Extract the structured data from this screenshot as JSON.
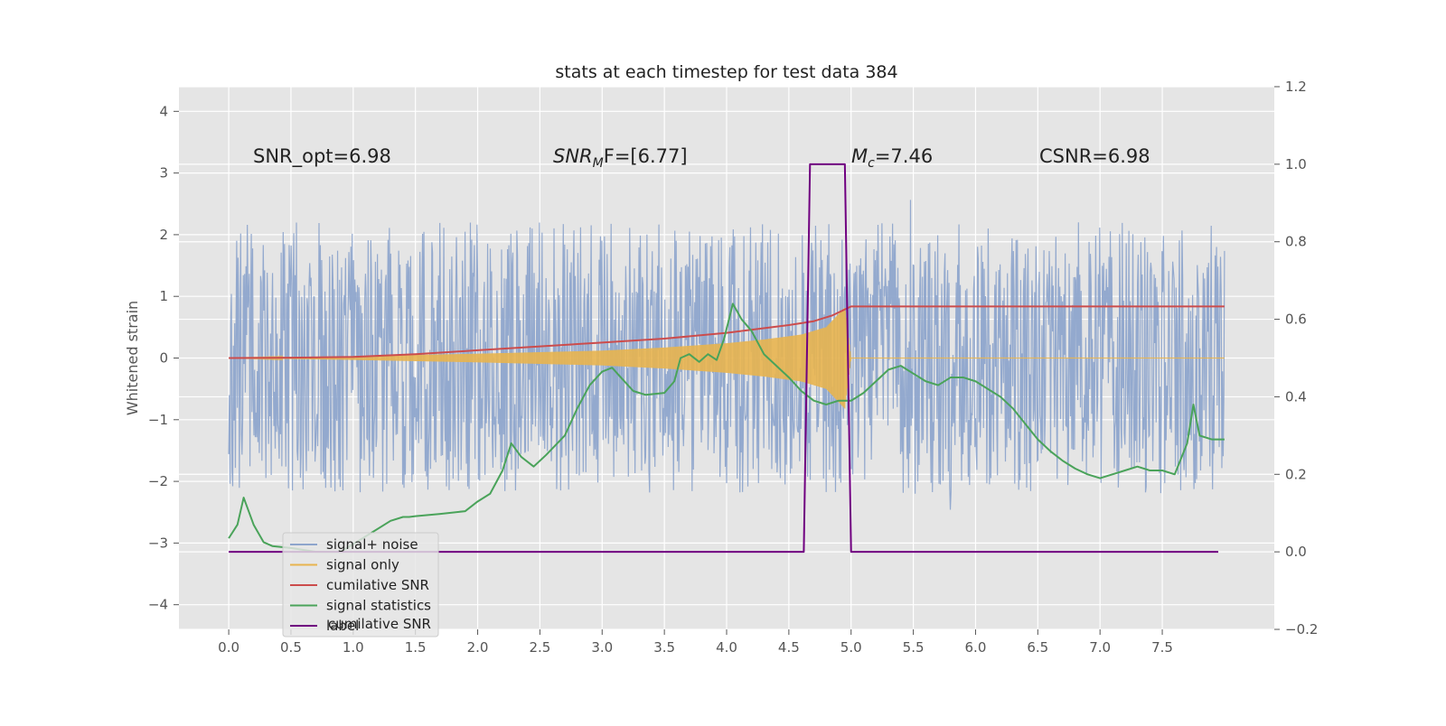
{
  "chart_data": {
    "type": "line",
    "title": "stats at each timestep for test data 384",
    "xlabel": "",
    "ylabel": "Whitened strain",
    "y2label": "",
    "xlim": [
      -0.4,
      8.4
    ],
    "ylim": [
      -4.4,
      4.4
    ],
    "y2lim": [
      -0.2,
      1.2
    ],
    "xticks": [
      "0.0",
      "0.5",
      "1.0",
      "1.5",
      "2.0",
      "2.5",
      "3.0",
      "3.5",
      "4.0",
      "4.5",
      "5.0",
      "5.5",
      "6.0",
      "6.5",
      "7.0",
      "7.5"
    ],
    "yticks": [
      "4",
      "3",
      "2",
      "1",
      "0",
      "−1",
      "−2",
      "−3",
      "−4"
    ],
    "y2ticks": [
      "1.2",
      "1.0",
      "0.8",
      "0.6",
      "0.4",
      "0.2",
      "0.0",
      "−0.2"
    ],
    "grid": true,
    "legend_position": "lower-left",
    "colors": {
      "signal_noise": "#8ea5cc",
      "signal_only": "#e8b44f",
      "cumulative_snr": "#cc4c4c",
      "signal_statistics": "#4aa35a",
      "label": "#700080"
    },
    "annotations": [
      {
        "text": "SNR_opt=6.98"
      },
      {
        "parts": [
          "SNR",
          "M",
          "F=[6.77]"
        ]
      },
      {
        "parts": [
          "M",
          "c",
          "=7.46"
        ]
      },
      {
        "text": "CSNR=6.98"
      }
    ],
    "legend": [
      "signal+ noise",
      "signal only",
      "cumilative SNR",
      "signal statistics",
      "label"
    ],
    "legend_hidden_text": "cumilative SNR",
    "series": [
      {
        "name": "signal+ noise",
        "axis": "left",
        "style": "noise band",
        "x_range": [
          0,
          8.0
        ],
        "envelope": 2.0,
        "peak_range": [
          -4.0,
          4.0
        ]
      },
      {
        "name": "signal only",
        "axis": "left",
        "style": "chirp",
        "x_range": [
          0,
          8.0
        ],
        "amplitude": {
          "x": [
            0,
            1.0,
            2.0,
            3.0,
            3.5,
            4.0,
            4.3,
            4.6,
            4.8,
            4.95,
            5.0,
            8.0
          ],
          "y": [
            0,
            0.03,
            0.07,
            0.12,
            0.17,
            0.24,
            0.3,
            0.38,
            0.5,
            0.82,
            0,
            0
          ]
        }
      },
      {
        "name": "cumilative SNR",
        "axis": "right",
        "x": [
          0,
          0.5,
          1.0,
          1.5,
          2.0,
          2.5,
          3.0,
          3.5,
          4.0,
          4.5,
          4.7,
          4.85,
          5.0,
          5.5,
          6.0,
          7.0,
          8.0
        ],
        "y": [
          0.5,
          0.501,
          0.503,
          0.51,
          0.52,
          0.53,
          0.54,
          0.55,
          0.565,
          0.585,
          0.595,
          0.61,
          0.633,
          0.633,
          0.633,
          0.633,
          0.633
        ]
      },
      {
        "name": "signal statistics",
        "axis": "right",
        "x": [
          0,
          0.07,
          0.12,
          0.2,
          0.28,
          0.35,
          0.5,
          0.7,
          0.9,
          1.1,
          1.3,
          1.4,
          1.45,
          1.5,
          1.7,
          1.9,
          2.0,
          2.1,
          2.2,
          2.27,
          2.35,
          2.45,
          2.55,
          2.7,
          2.8,
          2.9,
          3.0,
          3.08,
          3.15,
          3.25,
          3.35,
          3.5,
          3.58,
          3.63,
          3.7,
          3.78,
          3.85,
          3.92,
          3.98,
          4.05,
          4.12,
          4.2,
          4.3,
          4.4,
          4.5,
          4.6,
          4.7,
          4.8,
          4.9,
          5.0,
          5.1,
          5.2,
          5.3,
          5.4,
          5.5,
          5.6,
          5.7,
          5.8,
          5.9,
          6.0,
          6.1,
          6.2,
          6.3,
          6.4,
          6.5,
          6.6,
          6.7,
          6.8,
          6.9,
          7.0,
          7.1,
          7.2,
          7.3,
          7.4,
          7.5,
          7.6,
          7.7,
          7.75,
          7.8,
          7.9,
          8.0
        ],
        "y": [
          0.035,
          0.07,
          0.14,
          0.07,
          0.025,
          0.015,
          0.01,
          0.0,
          0.0,
          0.04,
          0.08,
          0.09,
          0.09,
          0.092,
          0.098,
          0.105,
          0.13,
          0.15,
          0.21,
          0.28,
          0.245,
          0.22,
          0.25,
          0.3,
          0.37,
          0.43,
          0.465,
          0.475,
          0.45,
          0.415,
          0.405,
          0.41,
          0.44,
          0.5,
          0.51,
          0.49,
          0.51,
          0.495,
          0.55,
          0.64,
          0.6,
          0.57,
          0.51,
          0.48,
          0.45,
          0.415,
          0.39,
          0.38,
          0.39,
          0.39,
          0.41,
          0.44,
          0.47,
          0.48,
          0.46,
          0.44,
          0.43,
          0.45,
          0.45,
          0.44,
          0.42,
          0.4,
          0.37,
          0.33,
          0.29,
          0.26,
          0.235,
          0.215,
          0.2,
          0.19,
          0.2,
          0.21,
          0.22,
          0.21,
          0.21,
          0.2,
          0.28,
          0.38,
          0.3,
          0.29,
          0.29
        ]
      },
      {
        "name": "label",
        "axis": "right",
        "x": [
          0,
          4.62,
          4.67,
          4.95,
          5.0,
          7.95
        ],
        "y": [
          0,
          0,
          1,
          1,
          0,
          0
        ]
      }
    ]
  }
}
